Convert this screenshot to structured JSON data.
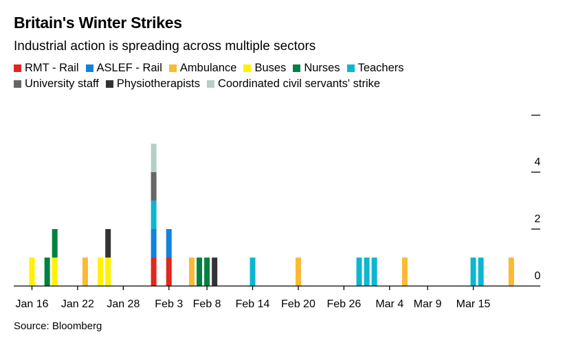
{
  "title": "Britain's Winter Strikes",
  "subtitle": "Industrial action is spreading across multiple sectors",
  "source": "Source: Bloomberg",
  "chart_data": {
    "type": "bar",
    "stacked": true,
    "title": "Britain's Winter Strikes",
    "subtitle": "Industrial action is spreading across multiple sectors",
    "xlabel": "",
    "ylabel": "",
    "ylim": [
      0,
      6
    ],
    "yticks": [
      0,
      2,
      4,
      6
    ],
    "ytick_labels": [
      "0",
      "2",
      "4",
      ""
    ],
    "xrange": [
      "Jan 15",
      "Mar 22"
    ],
    "xticks": [
      {
        "label": "Jan 16",
        "day": 16
      },
      {
        "label": "Jan 22",
        "day": 22
      },
      {
        "label": "Jan 28",
        "day": 28
      },
      {
        "label": "Feb 3",
        "day": 34
      },
      {
        "label": "Feb 8",
        "day": 39
      },
      {
        "label": "Feb 14",
        "day": 45
      },
      {
        "label": "Feb 20",
        "day": 51
      },
      {
        "label": "Feb 26",
        "day": 57
      },
      {
        "label": "Mar 4",
        "day": 63
      },
      {
        "label": "Mar 9",
        "day": 68
      },
      {
        "label": "Mar 15",
        "day": 74
      }
    ],
    "legend_position": "top-left",
    "series": [
      {
        "key": "rmt",
        "name": "RMT - Rail",
        "color": "#e1261c"
      },
      {
        "key": "aslef",
        "name": "ASLEF - Rail",
        "color": "#1183dc"
      },
      {
        "key": "ambulance",
        "name": "Ambulance",
        "color": "#fbb934"
      },
      {
        "key": "buses",
        "name": "Buses",
        "color": "#fff200"
      },
      {
        "key": "nurses",
        "name": "Nurses",
        "color": "#00813f"
      },
      {
        "key": "teachers",
        "name": "Teachers",
        "color": "#0db6d0"
      },
      {
        "key": "university",
        "name": "University staff",
        "color": "#666666"
      },
      {
        "key": "physio",
        "name": "Physiotherapists",
        "color": "#333333"
      },
      {
        "key": "civil",
        "name": "Coordinated civil servants' strike",
        "color": "#b3cfc8"
      }
    ],
    "days": [
      {
        "date": "Jan 16",
        "day": 16,
        "strikes": [
          "buses"
        ]
      },
      {
        "date": "Jan 18",
        "day": 18,
        "strikes": [
          "nurses"
        ]
      },
      {
        "date": "Jan 19",
        "day": 19,
        "strikes": [
          "buses",
          "nurses"
        ]
      },
      {
        "date": "Jan 23",
        "day": 23,
        "strikes": [
          "ambulance"
        ]
      },
      {
        "date": "Jan 25",
        "day": 25,
        "strikes": [
          "buses"
        ]
      },
      {
        "date": "Jan 26",
        "day": 26,
        "strikes": [
          "buses",
          "physio"
        ]
      },
      {
        "date": "Feb 1",
        "day": 32,
        "strikes": [
          "rmt",
          "aslef",
          "teachers",
          "university",
          "civil"
        ]
      },
      {
        "date": "Feb 3",
        "day": 34,
        "strikes": [
          "rmt",
          "aslef"
        ]
      },
      {
        "date": "Feb 6",
        "day": 37,
        "strikes": [
          "ambulance"
        ]
      },
      {
        "date": "Feb 7",
        "day": 38,
        "strikes": [
          "nurses"
        ]
      },
      {
        "date": "Feb 8",
        "day": 39,
        "strikes": [
          "nurses"
        ]
      },
      {
        "date": "Feb 9",
        "day": 40,
        "strikes": [
          "physio"
        ]
      },
      {
        "date": "Feb 14",
        "day": 45,
        "strikes": [
          "teachers"
        ]
      },
      {
        "date": "Feb 20",
        "day": 51,
        "strikes": [
          "ambulance"
        ]
      },
      {
        "date": "Feb 28",
        "day": 59,
        "strikes": [
          "teachers"
        ]
      },
      {
        "date": "Mar 1",
        "day": 60,
        "strikes": [
          "teachers"
        ]
      },
      {
        "date": "Mar 2",
        "day": 61,
        "strikes": [
          "teachers"
        ]
      },
      {
        "date": "Mar 6",
        "day": 65,
        "strikes": [
          "ambulance"
        ]
      },
      {
        "date": "Mar 15",
        "day": 74,
        "strikes": [
          "teachers"
        ]
      },
      {
        "date": "Mar 16",
        "day": 75,
        "strikes": [
          "teachers"
        ]
      },
      {
        "date": "Mar 20",
        "day": 79,
        "strikes": [
          "ambulance"
        ]
      }
    ]
  }
}
